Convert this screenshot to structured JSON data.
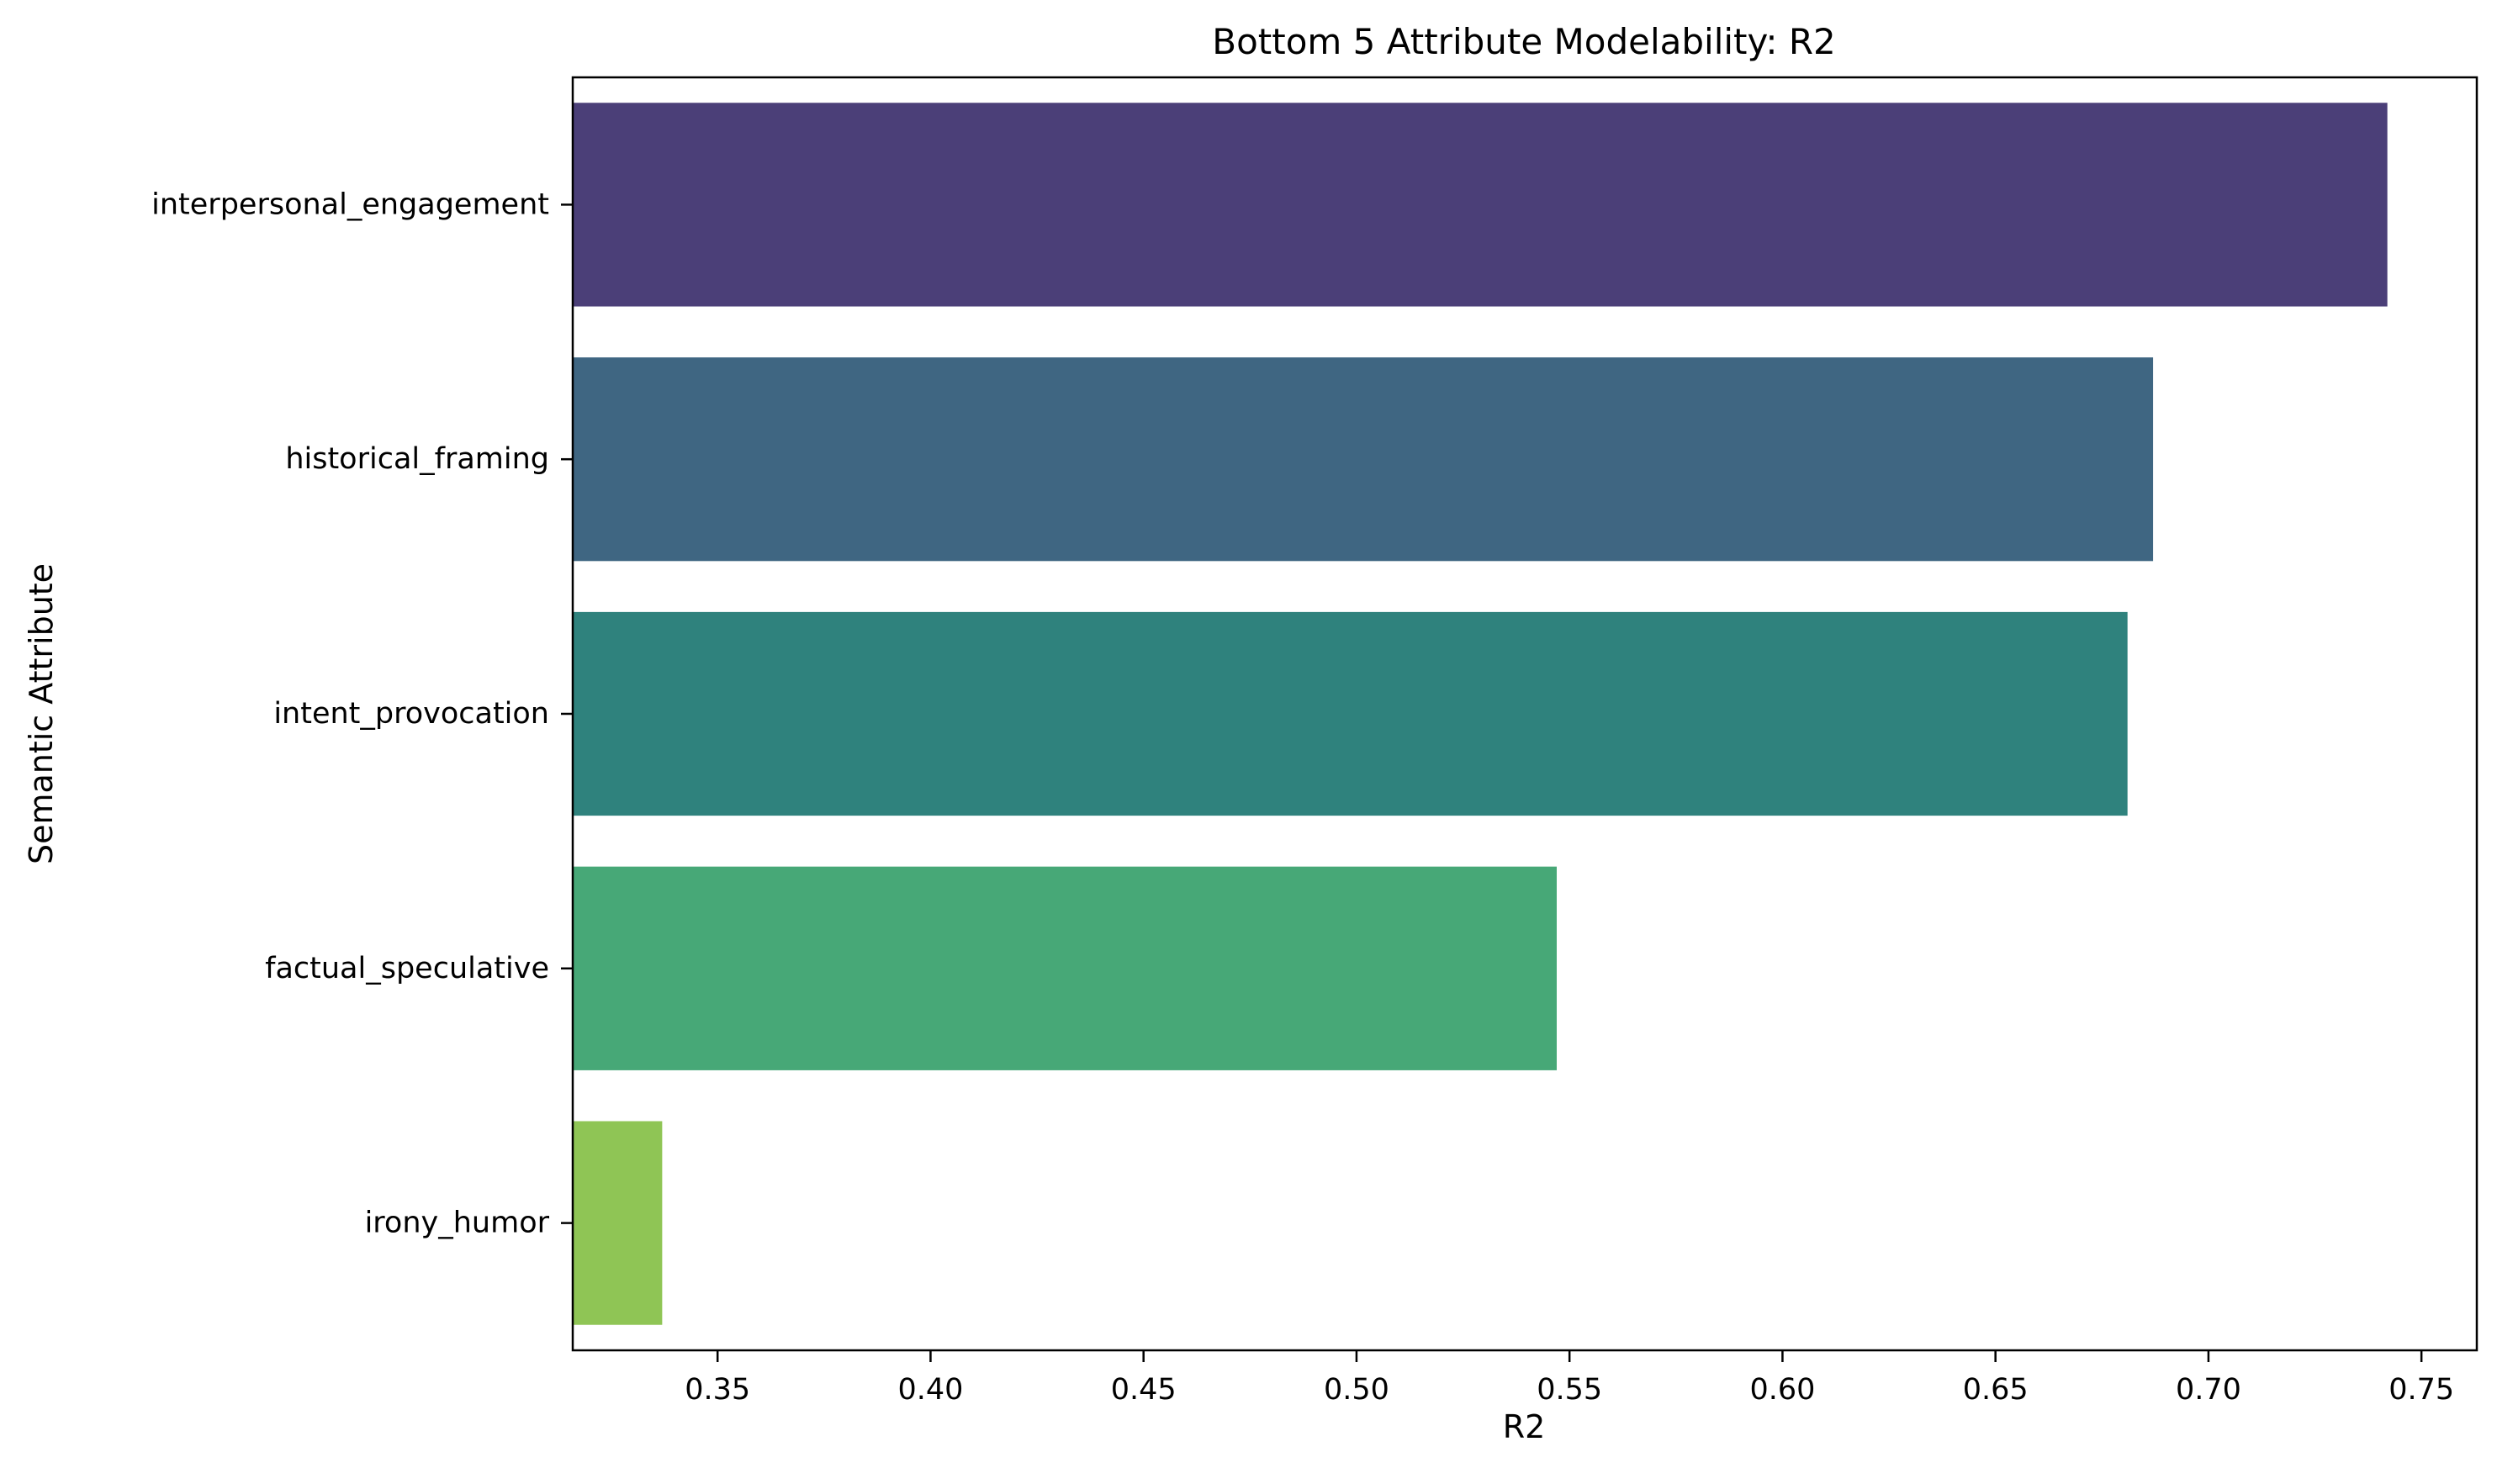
{
  "chart_data": {
    "type": "bar",
    "orientation": "horizontal",
    "title": "Bottom 5 Attribute Modelability: R2",
    "xlabel": "R2",
    "ylabel": "Semantic Attribute",
    "categories": [
      "interpersonal_engagement",
      "historical_framing",
      "intent_provocation",
      "factual_speculative",
      "irony_humor"
    ],
    "values": [
      0.742,
      0.687,
      0.681,
      0.547,
      0.337
    ],
    "colors": [
      "#4b3f78",
      "#3f6682",
      "#2f827d",
      "#47a877",
      "#8fc555"
    ],
    "xlim": [
      0.316,
      0.763
    ],
    "xticks": [
      "0.35",
      "0.40",
      "0.45",
      "0.50",
      "0.55",
      "0.60",
      "0.65",
      "0.70",
      "0.75"
    ],
    "grid": false,
    "legend": "none"
  }
}
